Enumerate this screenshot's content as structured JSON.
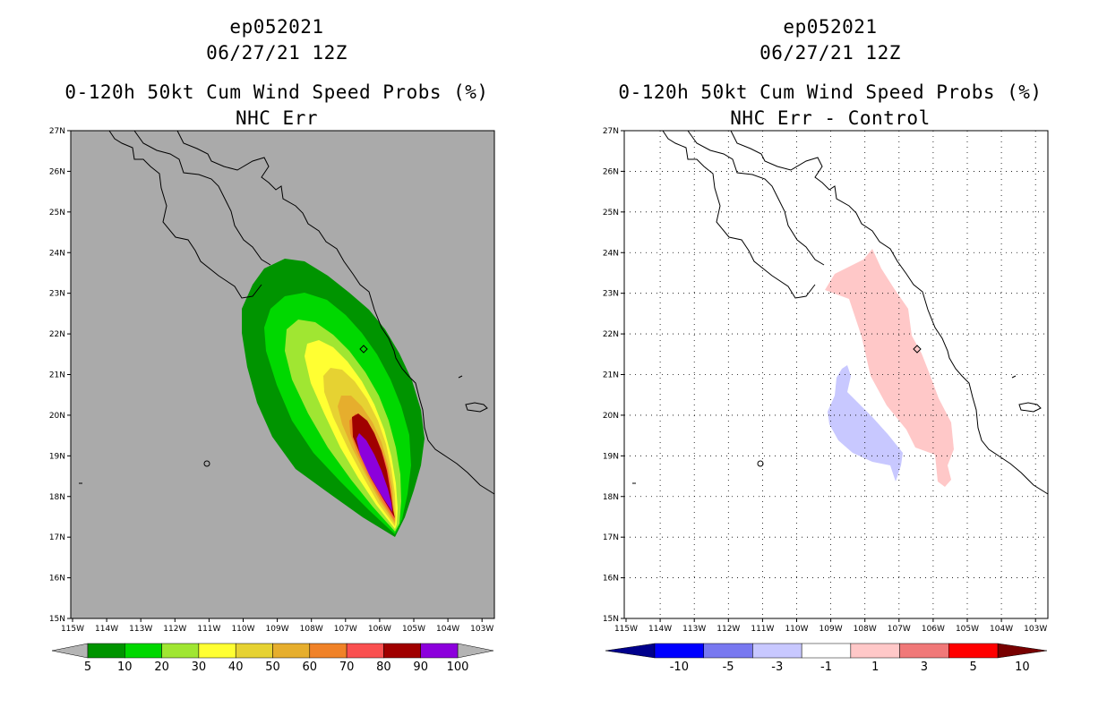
{
  "panels": [
    {
      "storm_id": "ep052021",
      "datetime": "06/27/21 12Z",
      "title": "0-120h 50kt Cum Wind Speed Probs (%)",
      "subtitle": "NHC Err"
    },
    {
      "storm_id": "ep052021",
      "datetime": "06/27/21 12Z",
      "title": "0-120h 50kt Cum Wind Speed Probs (%)",
      "subtitle": "NHC Err - Control"
    }
  ],
  "map": {
    "lat_labels": [
      "27N",
      "26N",
      "25N",
      "24N",
      "23N",
      "22N",
      "21N",
      "20N",
      "19N",
      "18N",
      "17N",
      "16N",
      "15N"
    ],
    "lon_labels": [
      "115W",
      "114W",
      "113W",
      "112W",
      "111W",
      "110W",
      "109W",
      "108W",
      "107W",
      "106W",
      "105W",
      "104W",
      "103W"
    ],
    "lat_range": [
      15,
      27
    ],
    "lon_range": [
      -115,
      -102.6
    ]
  },
  "colorbars": {
    "probs": {
      "labels": [
        "5",
        "10",
        "20",
        "30",
        "40",
        "50",
        "60",
        "70",
        "80",
        "90",
        "100"
      ],
      "colors": [
        "#009400",
        "#00d800",
        "#a0e632",
        "#ffff32",
        "#e6d232",
        "#e6ae2d",
        "#f08228",
        "#fa5050",
        "#a00000",
        "#8c00dc"
      ],
      "end_color": "#b4b4b4",
      "background": "#aaaaaa"
    },
    "diff": {
      "labels": [
        "-10",
        "-5",
        "-3",
        "-1",
        "1",
        "3",
        "5",
        "10"
      ],
      "colors": [
        "#0000c8",
        "#0000ff",
        "#7878f0",
        "#c8c8ff",
        "#ffffff",
        "#ffc8c8",
        "#f07878",
        "#ff0000",
        "#a00000"
      ],
      "low_end": "#00008c",
      "high_end": "#780000"
    }
  }
}
